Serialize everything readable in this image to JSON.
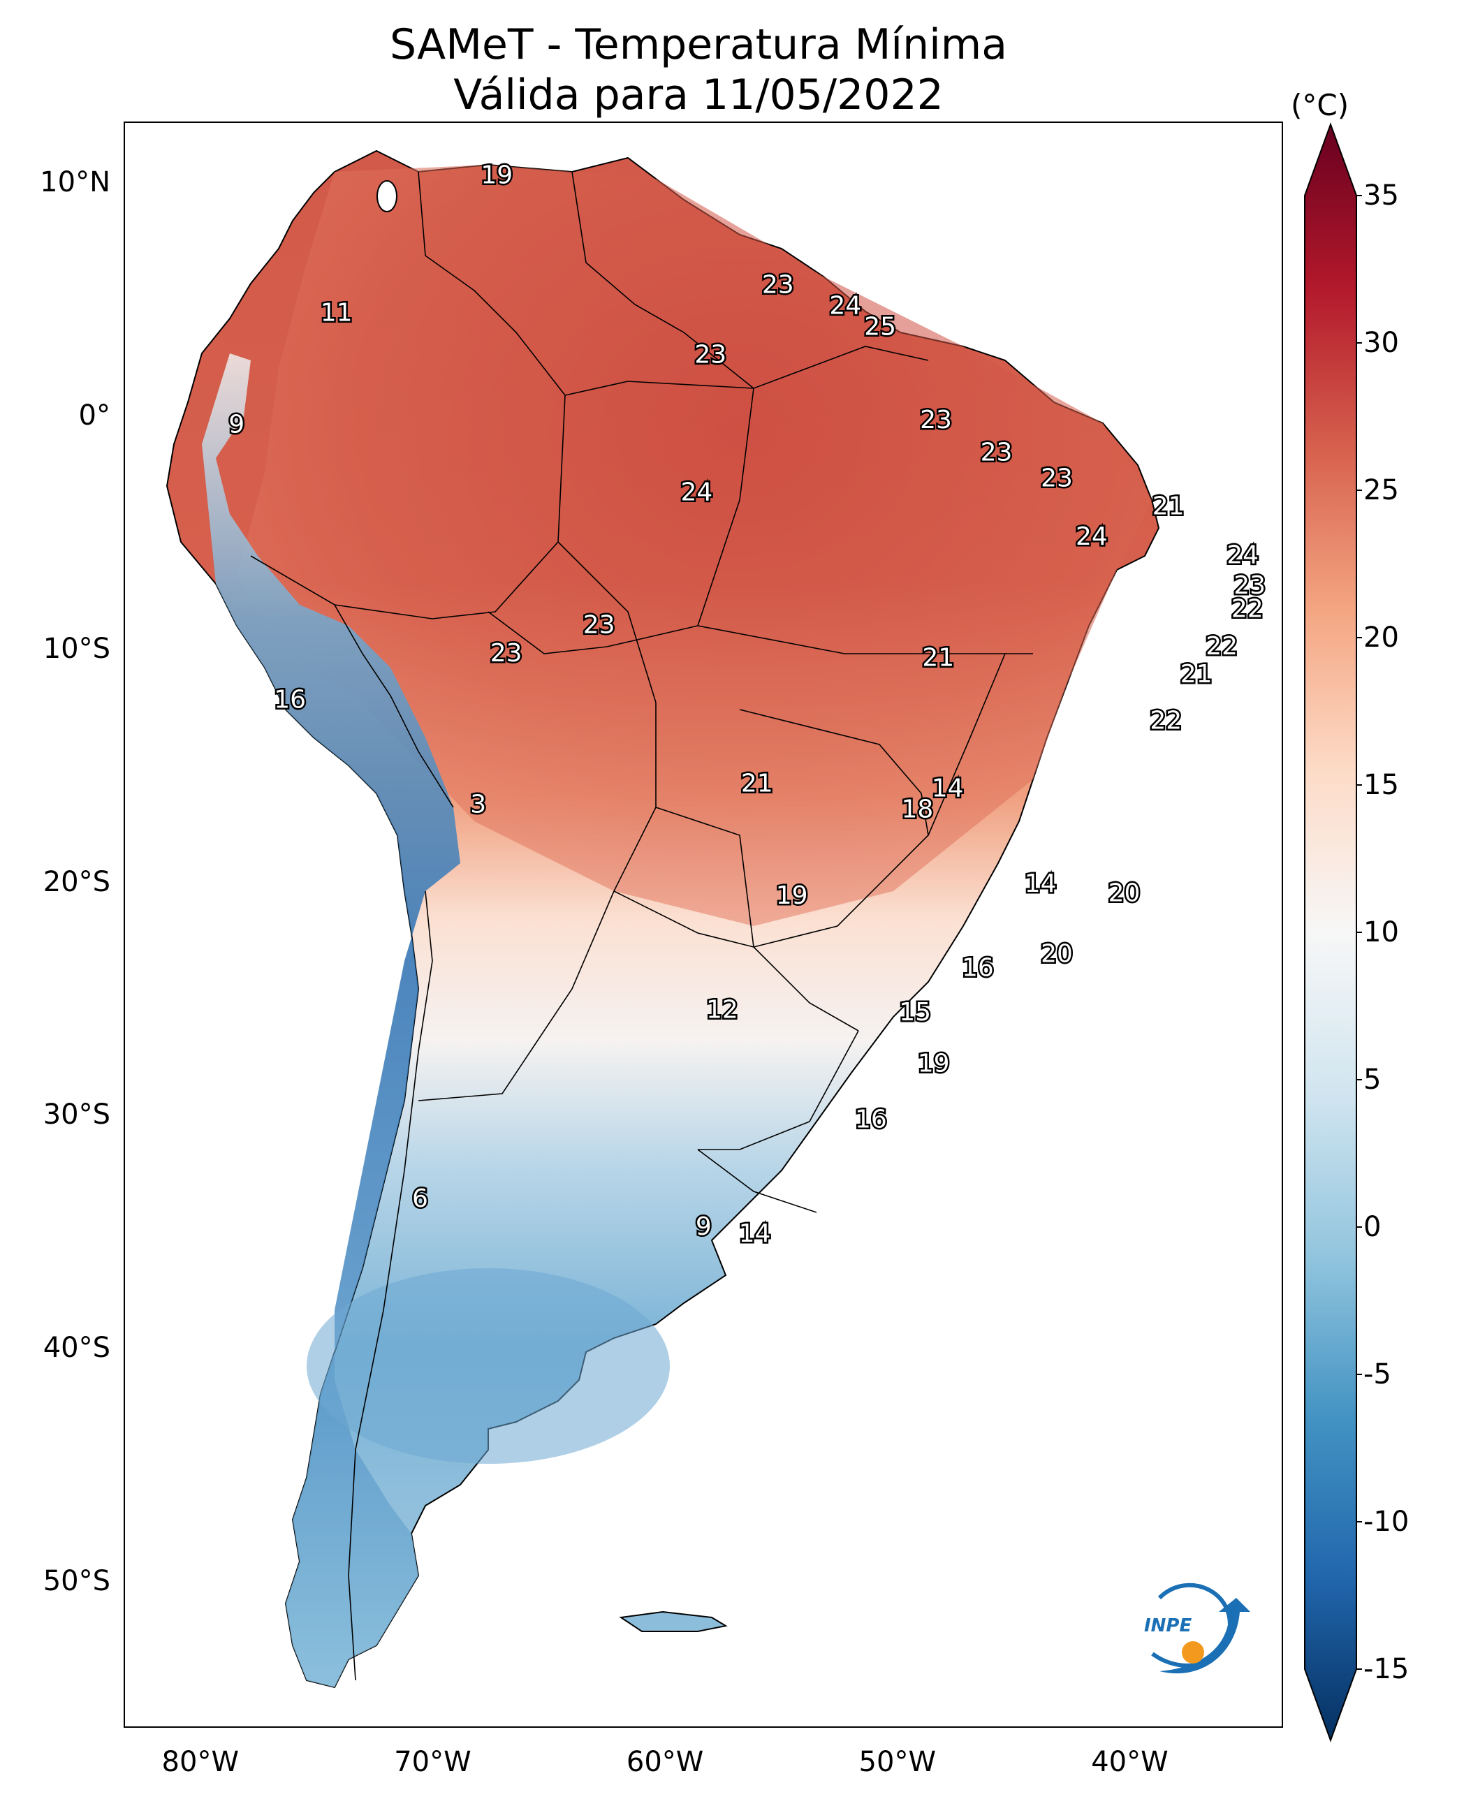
{
  "title": {
    "line1": "SAMeT - Temperatura Mínima",
    "line2": "Válida para 11/05/2022"
  },
  "map": {
    "lat_labels": [
      "10°N",
      "0°",
      "10°S",
      "20°S",
      "30°S",
      "40°S",
      "50°S"
    ],
    "lon_labels": [
      "80°W",
      "70°W",
      "60°W",
      "50°W",
      "40°W"
    ],
    "point_values": [
      {
        "v": "19",
        "lon": -67.3,
        "lat": 10.5
      },
      {
        "v": "11",
        "lon": -74.2,
        "lat": 4.6
      },
      {
        "v": "23",
        "lon": -55.2,
        "lat": 5.8
      },
      {
        "v": "24",
        "lon": -52.3,
        "lat": 4.9
      },
      {
        "v": "25",
        "lon": -50.8,
        "lat": 4.0
      },
      {
        "v": "23",
        "lon": -58.1,
        "lat": 2.8
      },
      {
        "v": "9",
        "lon": -78.5,
        "lat": -0.2
      },
      {
        "v": "23",
        "lon": -48.4,
        "lat": -0.0
      },
      {
        "v": "23",
        "lon": -45.8,
        "lat": -1.4
      },
      {
        "v": "23",
        "lon": -43.2,
        "lat": -2.5
      },
      {
        "v": "24",
        "lon": -58.7,
        "lat": -3.1
      },
      {
        "v": "21",
        "lon": -38.4,
        "lat": -3.7
      },
      {
        "v": "24",
        "lon": -41.7,
        "lat": -5.0
      },
      {
        "v": "24",
        "lon": -35.2,
        "lat": -5.8
      },
      {
        "v": "23",
        "lon": -34.9,
        "lat": -7.1
      },
      {
        "v": "22",
        "lon": -35.0,
        "lat": -8.1
      },
      {
        "v": "23",
        "lon": -62.9,
        "lat": -8.8
      },
      {
        "v": "23",
        "lon": -66.9,
        "lat": -10.0
      },
      {
        "v": "21",
        "lon": -48.3,
        "lat": -10.2
      },
      {
        "v": "22",
        "lon": -36.1,
        "lat": -9.7
      },
      {
        "v": "21",
        "lon": -37.2,
        "lat": -10.9
      },
      {
        "v": "16",
        "lon": -76.2,
        "lat": -12.0
      },
      {
        "v": "22",
        "lon": -38.5,
        "lat": -12.9
      },
      {
        "v": "21",
        "lon": -56.1,
        "lat": -15.6
      },
      {
        "v": "14",
        "lon": -47.9,
        "lat": -15.8
      },
      {
        "v": "18",
        "lon": -49.2,
        "lat": -16.7
      },
      {
        "v": "3",
        "lon": -68.1,
        "lat": -16.5
      },
      {
        "v": "14",
        "lon": -43.9,
        "lat": -19.9
      },
      {
        "v": "20",
        "lon": -40.3,
        "lat": -20.3
      },
      {
        "v": "19",
        "lon": -54.6,
        "lat": -20.4
      },
      {
        "v": "20",
        "lon": -43.2,
        "lat": -22.9
      },
      {
        "v": "16",
        "lon": -46.6,
        "lat": -23.5
      },
      {
        "v": "12",
        "lon": -57.6,
        "lat": -25.3
      },
      {
        "v": "15",
        "lon": -49.3,
        "lat": -25.4
      },
      {
        "v": "19",
        "lon": -48.5,
        "lat": -27.6
      },
      {
        "v": "16",
        "lon": -51.2,
        "lat": -30.0
      },
      {
        "v": "6",
        "lon": -70.6,
        "lat": -33.4
      },
      {
        "v": "9",
        "lon": -58.4,
        "lat": -34.6
      },
      {
        "v": "14",
        "lon": -56.2,
        "lat": -34.9
      }
    ]
  },
  "colorbar": {
    "unit": "(°C)",
    "ticks": [
      "35",
      "30",
      "25",
      "20",
      "15",
      "10",
      "5",
      "0",
      "-5",
      "-10",
      "-15"
    ],
    "min": -15,
    "max": 35,
    "extend": "both",
    "colors": [
      "#053061",
      "#2166ac",
      "#4393c3",
      "#92c5de",
      "#d1e5f0",
      "#f7f7f7",
      "#fddbc7",
      "#f4a582",
      "#d6604d",
      "#b2182b",
      "#67001f"
    ]
  },
  "logo": {
    "text": "INPE"
  }
}
